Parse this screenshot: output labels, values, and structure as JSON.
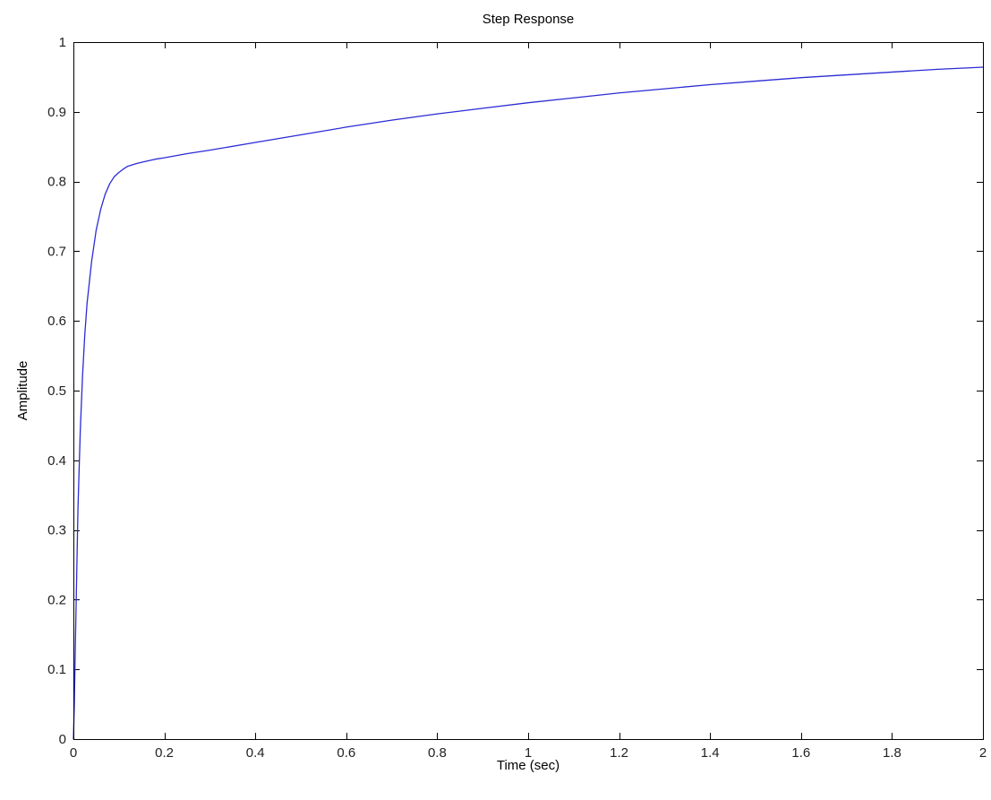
{
  "chart_data": {
    "type": "line",
    "title": "Step Response",
    "xlabel": "Time (sec)",
    "ylabel": "Amplitude",
    "xlim": [
      0,
      2
    ],
    "ylim": [
      0,
      1
    ],
    "x_ticks": [
      "0",
      "0.2",
      "0.4",
      "0.6",
      "0.8",
      "1",
      "1.2",
      "1.4",
      "1.6",
      "1.8",
      "2"
    ],
    "y_ticks": [
      "0",
      "0.1",
      "0.2",
      "0.3",
      "0.4",
      "0.5",
      "0.6",
      "0.7",
      "0.8",
      "0.9",
      "1"
    ],
    "grid": false,
    "series": [
      {
        "color": "#2b2bd6",
        "x": [
          0,
          0.002,
          0.005,
          0.01,
          0.015,
          0.02,
          0.025,
          0.03,
          0.04,
          0.05,
          0.06,
          0.07,
          0.08,
          0.09,
          0.1,
          0.11,
          0.12,
          0.14,
          0.16,
          0.18,
          0.2,
          0.25,
          0.3,
          0.4,
          0.5,
          0.6,
          0.7,
          0.8,
          0.9,
          1.0,
          1.1,
          1.2,
          1.3,
          1.4,
          1.5,
          1.6,
          1.7,
          1.8,
          1.9,
          2.0
        ],
        "y": [
          0,
          0.05,
          0.16,
          0.33,
          0.44,
          0.52,
          0.58,
          0.625,
          0.685,
          0.73,
          0.76,
          0.782,
          0.797,
          0.807,
          0.813,
          0.818,
          0.822,
          0.826,
          0.829,
          0.832,
          0.834,
          0.84,
          0.845,
          0.856,
          0.867,
          0.878,
          0.888,
          0.897,
          0.905,
          0.913,
          0.92,
          0.927,
          0.933,
          0.939,
          0.944,
          0.949,
          0.953,
          0.957,
          0.961,
          0.964
        ]
      }
    ]
  }
}
